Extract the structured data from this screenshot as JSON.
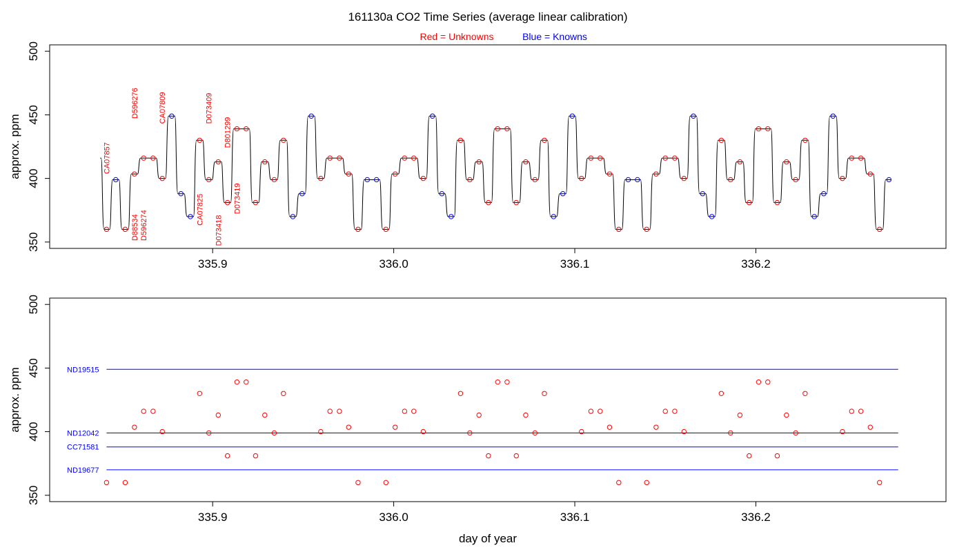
{
  "title": "161130a   CO2 Time Series (average linear calibration)",
  "legend": {
    "red_label": "Red = Unknowns",
    "blue_label": "Blue = Knowns",
    "red_color": "#ff0000",
    "blue_color": "#0000ff"
  },
  "xlabel": "day of year",
  "colors": {
    "trace": "#000000",
    "unknown": "#ff0000",
    "known": "#0000ff"
  },
  "chart_data": [
    {
      "type": "line",
      "panel": "top",
      "ylabel": "approx. ppm",
      "xlim": [
        335.81,
        336.305
      ],
      "ylim": [
        345,
        505
      ],
      "xticks": [
        335.9,
        336.0,
        336.1,
        336.2
      ],
      "xtick_labels": [
        "335.9",
        "336.0",
        "336.1",
        "336.2"
      ],
      "yticks": [
        350,
        400,
        450,
        500
      ],
      "ytick_labels": [
        "350",
        "400",
        "450",
        "500"
      ],
      "series": [
        {
          "role": "unknown",
          "points": [
            [
              335.8414,
              360
            ],
            [
              335.8517,
              360
            ],
            [
              335.8568,
              403.5
            ],
            [
              335.8619,
              416
            ],
            [
              335.8671,
              416
            ],
            [
              335.8722,
              400
            ],
            [
              335.8928,
              430
            ],
            [
              335.8979,
              399
            ],
            [
              335.9031,
              413
            ],
            [
              335.9082,
              381
            ],
            [
              335.9134,
              439
            ],
            [
              335.9185,
              439
            ],
            [
              335.9237,
              381
            ],
            [
              335.9288,
              413
            ],
            [
              335.934,
              399
            ],
            [
              335.9391,
              430
            ],
            [
              335.9597,
              400
            ],
            [
              335.9648,
              416
            ],
            [
              335.97,
              416
            ],
            [
              335.9751,
              403.5
            ],
            [
              335.9803,
              360
            ],
            [
              335.9957,
              360
            ],
            [
              336.0008,
              403.5
            ],
            [
              336.006,
              416
            ],
            [
              336.0111,
              416
            ],
            [
              336.0163,
              400
            ],
            [
              336.0369,
              430
            ],
            [
              336.042,
              399
            ],
            [
              336.0471,
              413
            ],
            [
              336.0523,
              381
            ],
            [
              336.0574,
              439
            ],
            [
              336.0626,
              439
            ],
            [
              336.0677,
              381
            ],
            [
              336.0729,
              413
            ],
            [
              336.078,
              399
            ],
            [
              336.0832,
              430
            ],
            [
              336.1037,
              400
            ],
            [
              336.1089,
              416
            ],
            [
              336.114,
              416
            ],
            [
              336.1192,
              403.5
            ],
            [
              336.1243,
              360
            ],
            [
              336.1397,
              360
            ],
            [
              336.1449,
              403.5
            ],
            [
              336.15,
              416
            ],
            [
              336.1552,
              416
            ],
            [
              336.1603,
              400
            ],
            [
              336.1809,
              430
            ],
            [
              336.186,
              399
            ],
            [
              336.1912,
              413
            ],
            [
              336.1963,
              381
            ],
            [
              336.2015,
              439
            ],
            [
              336.2066,
              439
            ],
            [
              336.2118,
              381
            ],
            [
              336.2169,
              413
            ],
            [
              336.222,
              399
            ],
            [
              336.2272,
              430
            ],
            [
              336.2478,
              400
            ],
            [
              336.2529,
              416
            ],
            [
              336.258,
              416
            ],
            [
              336.2632,
              403.5
            ],
            [
              336.2683,
              360
            ]
          ]
        },
        {
          "role": "known",
          "points": [
            [
              335.8465,
              399
            ],
            [
              335.8774,
              449
            ],
            [
              335.8825,
              388
            ],
            [
              335.8877,
              370
            ],
            [
              335.9443,
              370
            ],
            [
              335.9494,
              388
            ],
            [
              335.9545,
              449
            ],
            [
              335.9854,
              399
            ],
            [
              335.9905,
              399
            ],
            [
              336.0214,
              449
            ],
            [
              336.0266,
              388
            ],
            [
              336.0317,
              370
            ],
            [
              336.0883,
              370
            ],
            [
              336.0934,
              388
            ],
            [
              336.0986,
              449
            ],
            [
              336.1295,
              399
            ],
            [
              336.1346,
              399
            ],
            [
              336.1655,
              449
            ],
            [
              336.1706,
              388
            ],
            [
              336.1757,
              370
            ],
            [
              336.2323,
              370
            ],
            [
              336.2375,
              388
            ],
            [
              336.2426,
              449
            ],
            [
              336.2735,
              399
            ]
          ]
        }
      ],
      "annotations": [
        {
          "text": "CA07857",
          "x": 335.8414,
          "y": 403.5
        },
        {
          "text": "D88534",
          "x": 335.8568,
          "y": 351
        },
        {
          "text": "D596276",
          "x": 335.8568,
          "y": 447
        },
        {
          "text": "D596274",
          "x": 335.8619,
          "y": 351
        },
        {
          "text": "CA07809",
          "x": 335.8722,
          "y": 443
        },
        {
          "text": "CA07825",
          "x": 335.8928,
          "y": 363
        },
        {
          "text": "D073418",
          "x": 335.9031,
          "y": 347
        },
        {
          "text": "D073409",
          "x": 335.8979,
          "y": 443
        },
        {
          "text": "D801299",
          "x": 335.9082,
          "y": 424
        },
        {
          "text": "D073419",
          "x": 335.9134,
          "y": 372
        }
      ]
    },
    {
      "type": "scatter",
      "panel": "bottom",
      "ylabel": "approx. ppm",
      "xlim": [
        335.81,
        336.305
      ],
      "ylim": [
        345,
        505
      ],
      "xticks": [
        335.9,
        336.0,
        336.1,
        336.2
      ],
      "xtick_labels": [
        "335.9",
        "336.0",
        "336.1",
        "336.2"
      ],
      "yticks": [
        350,
        400,
        450,
        500
      ],
      "ytick_labels": [
        "350",
        "400",
        "450",
        "500"
      ],
      "reference_lines": [
        {
          "name": "ND19515",
          "y": 449
        },
        {
          "name": "ND12042",
          "y": 399
        },
        {
          "name": "CC71581",
          "y": 388
        },
        {
          "name": "ND19677",
          "y": 370
        }
      ],
      "reference_line_x": [
        335.8414,
        336.2786
      ]
    }
  ]
}
